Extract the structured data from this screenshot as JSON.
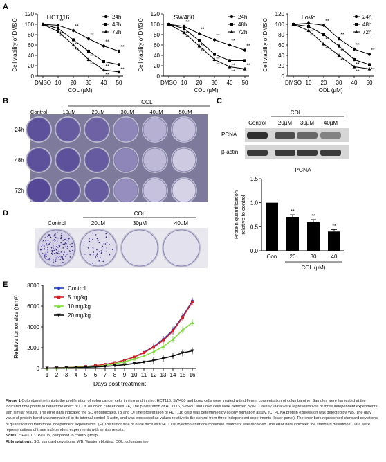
{
  "panel_letters": {
    "a": "A",
    "b": "B",
    "c": "C",
    "d": "D",
    "e": "E"
  },
  "chart_data": [
    {
      "type": "line",
      "panel": "A",
      "title": "HCT116",
      "categories": [
        "DMSO",
        "10",
        "20",
        "30",
        "40",
        "50"
      ],
      "xlabel": "COL (µM)",
      "ylabel": "Cell viability of DMSO",
      "ylim": [
        0,
        120
      ],
      "yticks": [
        0,
        20,
        40,
        60,
        80,
        100,
        120
      ],
      "series": [
        {
          "name": "24h",
          "marker": "circle",
          "values": [
            100,
            98,
            88,
            72,
            58,
            48
          ]
        },
        {
          "name": "48h",
          "marker": "square",
          "values": [
            100,
            92,
            70,
            48,
            28,
            22
          ]
        },
        {
          "name": "72h",
          "marker": "triangle",
          "values": [
            100,
            86,
            60,
            32,
            12,
            8
          ]
        }
      ],
      "sig": [
        [
          "**",
          "**",
          "**"
        ],
        [
          "**",
          "**",
          "**"
        ],
        [
          "**",
          "**",
          "**"
        ],
        [
          "**",
          "**",
          "**"
        ],
        [
          "**",
          "**"
        ]
      ]
    },
    {
      "type": "line",
      "panel": "A",
      "title": "SW480",
      "categories": [
        "DMSO",
        "10",
        "20",
        "30",
        "40",
        "50"
      ],
      "xlabel": "COL (µM)",
      "ylabel": "Cell viability of DMSO",
      "ylim": [
        0,
        120
      ],
      "yticks": [
        0,
        20,
        40,
        60,
        80,
        100,
        120
      ],
      "series": [
        {
          "name": "24h",
          "marker": "circle",
          "values": [
            100,
            96,
            82,
            70,
            60,
            50
          ]
        },
        {
          "name": "48h",
          "marker": "square",
          "values": [
            100,
            92,
            68,
            42,
            30,
            30
          ]
        },
        {
          "name": "72h",
          "marker": "triangle",
          "values": [
            100,
            84,
            58,
            32,
            18,
            14
          ]
        }
      ],
      "sig": [
        [
          "**",
          "**",
          "**"
        ],
        [
          "**",
          "**",
          "**"
        ],
        [
          "**",
          "**",
          "**"
        ],
        [
          "**",
          "**",
          "**"
        ],
        [
          "**",
          "**"
        ]
      ]
    },
    {
      "type": "line",
      "panel": "A",
      "title": "LoVo",
      "categories": [
        "DMSO",
        "10",
        "20",
        "30",
        "40",
        "50"
      ],
      "xlabel": "COL (µM)",
      "ylabel": "Cell viability of DMSO",
      "ylim": [
        0,
        120
      ],
      "yticks": [
        0,
        20,
        40,
        60,
        80,
        100,
        120
      ],
      "series": [
        {
          "name": "24h",
          "marker": "circle",
          "values": [
            100,
            102,
            98,
            72,
            52,
            42
          ]
        },
        {
          "name": "48h",
          "marker": "square",
          "values": [
            100,
            96,
            80,
            58,
            32,
            22
          ]
        },
        {
          "name": "72h",
          "marker": "triangle",
          "values": [
            100,
            88,
            62,
            40,
            18,
            14
          ]
        }
      ],
      "sig": [
        [
          "*",
          "**",
          "**"
        ],
        [
          "**",
          "**",
          "**"
        ],
        [
          "**",
          "**",
          "**"
        ],
        [
          "**",
          "**",
          "**"
        ],
        [
          "**",
          "**"
        ]
      ]
    },
    {
      "type": "bar",
      "panel": "C",
      "title": "PCNA",
      "categories": [
        "Con",
        "20",
        "30",
        "40"
      ],
      "values": [
        1.0,
        0.7,
        0.6,
        0.4
      ],
      "errors": [
        0,
        0.05,
        0.05,
        0.04
      ],
      "sig": [
        "",
        "**",
        "**",
        "**"
      ],
      "xlabel": "COL (µM)",
      "ylabel": "Protein quantification relative to control",
      "ylim": [
        0,
        1.5
      ],
      "yticks": [
        "0.0",
        "0.5",
        "1.0",
        "1.5"
      ]
    },
    {
      "type": "line",
      "panel": "E",
      "x": [
        1,
        2,
        3,
        4,
        5,
        6,
        7,
        8,
        9,
        10,
        11,
        12,
        13,
        14,
        15,
        16
      ],
      "xlabel": "Days post treatment",
      "ylabel": "Relative tumor size (mm³)",
      "ylim": [
        0,
        8000
      ],
      "yticks": [
        0,
        2000,
        4000,
        6000,
        8000
      ],
      "series": [
        {
          "name": "Control",
          "color": "#1f3fbf",
          "marker": "circle",
          "values": [
            40,
            60,
            90,
            130,
            190,
            270,
            380,
            560,
            800,
            1100,
            1550,
            2100,
            2800,
            3700,
            5000,
            6500
          ]
        },
        {
          "name": "5 mg/kg",
          "color": "#d81f26",
          "marker": "square",
          "values": [
            40,
            60,
            90,
            130,
            190,
            270,
            380,
            560,
            800,
            1100,
            1520,
            2050,
            2700,
            3600,
            4900,
            6400
          ]
        },
        {
          "name": "10 mg/kg",
          "color": "#7ede3f",
          "marker": "triangle",
          "values": [
            30,
            50,
            80,
            110,
            150,
            200,
            300,
            450,
            650,
            900,
            1200,
            1600,
            2100,
            2800,
            3700,
            4400
          ]
        },
        {
          "name": "20 mg/kg",
          "color": "#111111",
          "marker": "triangle-down",
          "values": [
            30,
            40,
            60,
            80,
            110,
            150,
            200,
            270,
            360,
            480,
            620,
            780,
            980,
            1200,
            1500,
            1700
          ]
        }
      ]
    }
  ],
  "panel_b": {
    "group_label": "COL",
    "columns": [
      "Control",
      "10µM",
      "20µM",
      "30µM",
      "40µM",
      "50µM"
    ],
    "rows": [
      "24h",
      "48h",
      "72h"
    ]
  },
  "panel_c_blot": {
    "group_label": "COL",
    "columns": [
      "Control",
      "20µM",
      "30µM",
      "40µM"
    ],
    "rows": [
      "PCNA",
      "β-actin"
    ]
  },
  "panel_d": {
    "group_label": "COL",
    "columns": [
      "Control",
      "20µM",
      "30µM",
      "40µM"
    ]
  },
  "caption": {
    "title": "Figure 1",
    "text": "Columbamine inhibits the proliferation of colon cancer cells in vitro and in vivo. HCT116, SW480 and LoVo cells were treated with different concentration of columbamine. Samples were harvested at the indicated time points to detect the effect of COL on colon cancer cells. (A) The proliferation of HCT116, SW480 and LoVo cells were detected by MTT assay. Data were representatives of three independent experiments with similar results. The error bars indicated the SD of duplicates. (B and D) The proliferation of HCT116 cells was determined by colony formation assay. (C) PCNA protein expression was detected by WB. The gray value of protein band was normalized to its internal control β-actin, and was expressed as values relative to the control from three independent experiments (lower panel). The error bars represented standard deviations of quantification from three independent experiments. (E) The tumor size of nude mice with HCT116 injection after columbamine treatment was recorded. The error bars indicated the standard deviations. Data were representatives of three independent experiments with similar results.",
    "notes_label": "Notes:",
    "notes_text": "**P<0.01; *P<0.05, compared to control group.",
    "abbr_label": "Abbreviations:",
    "abbr_text": "SD, standard deviations; WB, Western blotting; COL, columbamine."
  },
  "colors": {
    "plate_dark": "#4a3f8c",
    "plate_light": "#c9c6de",
    "plate_bg": "#9a8fc8",
    "blot": "#3a3a3a"
  }
}
